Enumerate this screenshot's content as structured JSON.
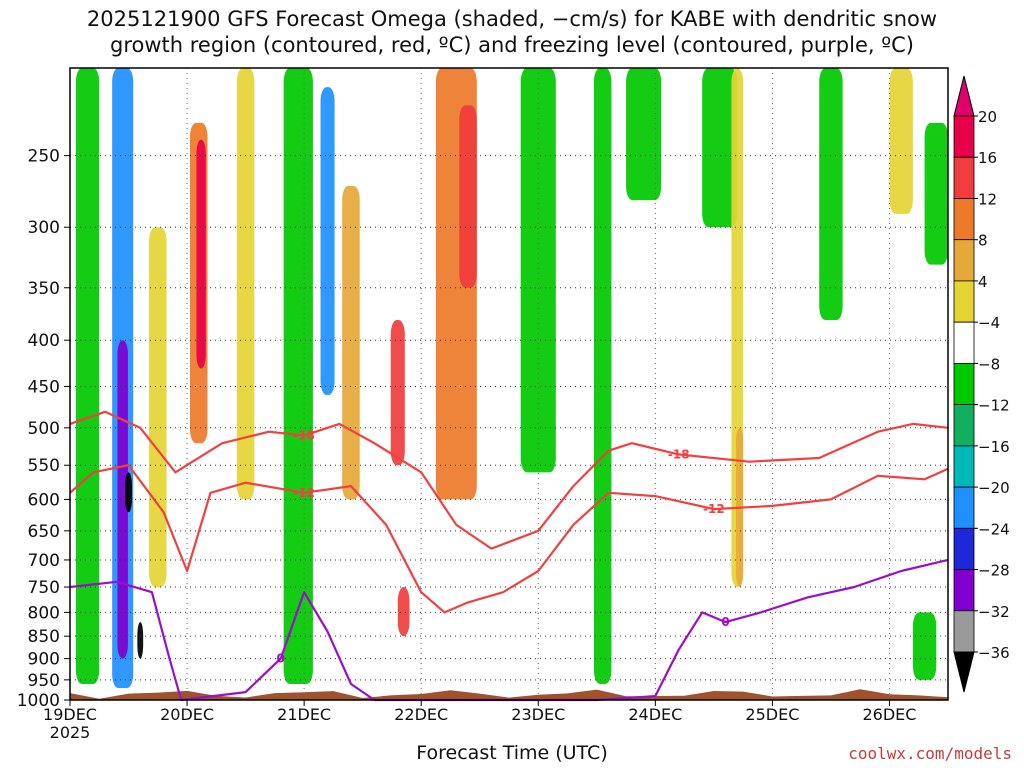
{
  "title_line1": "2025121900 GFS Forecast Omega (shaded, −cm/s) for KABE with dendritic snow",
  "title_line2": "growth region (contoured, red, ºC) and freezing level (contoured, purple, ºC)",
  "xlabel": "Forecast Time (UTC)",
  "credit": "coolwx.com/models",
  "chart_data": {
    "type": "heatmap",
    "y_axis": {
      "scale": "log-pressure",
      "range": [
        1000,
        200
      ],
      "ticks": [
        250,
        300,
        350,
        400,
        450,
        500,
        550,
        600,
        650,
        700,
        750,
        800,
        850,
        900,
        950,
        1000
      ]
    },
    "x_axis": {
      "ticks": [
        "19DEC",
        "20DEC",
        "21DEC",
        "22DEC",
        "23DEC",
        "24DEC",
        "25DEC",
        "26DEC"
      ],
      "year_label": "2025"
    },
    "colorbar": {
      "labels": [
        "20",
        "16",
        "12",
        "8",
        "4",
        "−4",
        "−8",
        "−12",
        "−16",
        "−20",
        "−24",
        "−28",
        "−32",
        "−36"
      ],
      "colors": [
        "#e8004a",
        "#f03c3c",
        "#ec7a28",
        "#e6a838",
        "#e6d434",
        "#ffffff",
        "#00c800",
        "#10b060",
        "#00b8b8",
        "#1e90ff",
        "#1e28d8",
        "#8000d0",
        "#9a9a9a",
        "#000000"
      ],
      "top_color": "#e0006a",
      "bottom_color": "#000000"
    },
    "contours": [
      {
        "label": "-12",
        "color": "#f04040"
      },
      {
        "label": "-18",
        "color": "#f04040"
      },
      {
        "label": "0",
        "color": "#9a10c8"
      }
    ],
    "shading_bands": [
      {
        "x": 19.15,
        "w": 0.2,
        "p1": 200,
        "p2": 960,
        "color": "#00c800"
      },
      {
        "x": 19.45,
        "w": 0.18,
        "p1": 200,
        "p2": 970,
        "color": "#1e90ff"
      },
      {
        "x": 19.45,
        "w": 0.09,
        "p1": 400,
        "p2": 900,
        "color": "#8000d0"
      },
      {
        "x": 19.5,
        "w": 0.06,
        "p1": 560,
        "p2": 620,
        "color": "#000000"
      },
      {
        "x": 19.6,
        "w": 0.05,
        "p1": 820,
        "p2": 900,
        "color": "#000000"
      },
      {
        "x": 19.75,
        "w": 0.15,
        "p1": 300,
        "p2": 750,
        "color": "#e6d434"
      },
      {
        "x": 20.1,
        "w": 0.15,
        "p1": 230,
        "p2": 520,
        "color": "#ec7a28"
      },
      {
        "x": 20.12,
        "w": 0.08,
        "p1": 240,
        "p2": 430,
        "color": "#e8004a"
      },
      {
        "x": 20.5,
        "w": 0.15,
        "p1": 200,
        "p2": 600,
        "color": "#e6d434"
      },
      {
        "x": 20.95,
        "w": 0.25,
        "p1": 200,
        "p2": 960,
        "color": "#00c800"
      },
      {
        "x": 21.2,
        "w": 0.12,
        "p1": 210,
        "p2": 460,
        "color": "#1e90ff"
      },
      {
        "x": 21.4,
        "w": 0.15,
        "p1": 270,
        "p2": 600,
        "color": "#e6a838"
      },
      {
        "x": 21.8,
        "w": 0.12,
        "p1": 380,
        "p2": 550,
        "color": "#f03c3c"
      },
      {
        "x": 21.85,
        "w": 0.1,
        "p1": 750,
        "p2": 850,
        "color": "#f03c3c"
      },
      {
        "x": 22.3,
        "w": 0.35,
        "p1": 200,
        "p2": 600,
        "color": "#ec7a28"
      },
      {
        "x": 22.4,
        "w": 0.15,
        "p1": 220,
        "p2": 350,
        "color": "#f03c3c"
      },
      {
        "x": 23.0,
        "w": 0.3,
        "p1": 200,
        "p2": 560,
        "color": "#00c800"
      },
      {
        "x": 23.55,
        "w": 0.15,
        "p1": 200,
        "p2": 960,
        "color": "#00c800"
      },
      {
        "x": 23.9,
        "w": 0.3,
        "p1": 200,
        "p2": 280,
        "color": "#00c800"
      },
      {
        "x": 24.55,
        "w": 0.3,
        "p1": 200,
        "p2": 300,
        "color": "#00c800"
      },
      {
        "x": 24.7,
        "w": 0.1,
        "p1": 200,
        "p2": 750,
        "color": "#e6d434"
      },
      {
        "x": 24.72,
        "w": 0.06,
        "p1": 500,
        "p2": 750,
        "color": "#e6a838"
      },
      {
        "x": 25.5,
        "w": 0.2,
        "p1": 200,
        "p2": 380,
        "color": "#00c800"
      },
      {
        "x": 26.1,
        "w": 0.2,
        "p1": 200,
        "p2": 290,
        "color": "#e6d434"
      },
      {
        "x": 26.4,
        "w": 0.2,
        "p1": 230,
        "p2": 330,
        "color": "#00c800"
      },
      {
        "x": 26.3,
        "w": 0.2,
        "p1": 800,
        "p2": 950,
        "color": "#00c800"
      }
    ],
    "contour_lines": {
      "dgz_top_-18": [
        [
          19.0,
          495
        ],
        [
          19.3,
          480
        ],
        [
          19.6,
          500
        ],
        [
          19.9,
          560
        ],
        [
          20.3,
          520
        ],
        [
          20.7,
          505
        ],
        [
          21.0,
          510
        ],
        [
          21.3,
          495
        ],
        [
          21.6,
          520
        ],
        [
          22.0,
          560
        ],
        [
          22.3,
          640
        ],
        [
          22.6,
          680
        ],
        [
          23.0,
          650
        ],
        [
          23.3,
          580
        ],
        [
          23.6,
          530
        ],
        [
          23.8,
          520
        ],
        [
          24.2,
          535
        ],
        [
          24.8,
          545
        ],
        [
          25.4,
          540
        ],
        [
          25.9,
          505
        ],
        [
          26.2,
          495
        ],
        [
          26.5,
          500
        ]
      ],
      "dgz_bottom_-12": [
        [
          19.0,
          590
        ],
        [
          19.2,
          560
        ],
        [
          19.5,
          550
        ],
        [
          19.8,
          620
        ],
        [
          20.0,
          720
        ],
        [
          20.2,
          590
        ],
        [
          20.5,
          575
        ],
        [
          21.0,
          590
        ],
        [
          21.4,
          580
        ],
        [
          21.7,
          640
        ],
        [
          22.0,
          760
        ],
        [
          22.2,
          800
        ],
        [
          22.4,
          780
        ],
        [
          22.7,
          760
        ],
        [
          23.0,
          720
        ],
        [
          23.3,
          640
        ],
        [
          23.6,
          590
        ],
        [
          24.0,
          595
        ],
        [
          24.5,
          615
        ],
        [
          25.0,
          610
        ],
        [
          25.5,
          600
        ],
        [
          25.9,
          565
        ],
        [
          26.3,
          570
        ],
        [
          26.5,
          555
        ]
      ],
      "freezing_0": [
        [
          19.0,
          750
        ],
        [
          19.4,
          740
        ],
        [
          19.7,
          760
        ],
        [
          19.85,
          900
        ],
        [
          19.95,
          1000
        ],
        [
          20.5,
          980
        ],
        [
          20.8,
          900
        ],
        [
          21.0,
          760
        ],
        [
          21.2,
          840
        ],
        [
          21.4,
          960
        ],
        [
          21.6,
          1000
        ],
        [
          23.5,
          1000
        ],
        [
          24.0,
          990
        ],
        [
          24.2,
          880
        ],
        [
          24.4,
          800
        ],
        [
          24.6,
          820
        ],
        [
          24.9,
          800
        ],
        [
          25.3,
          770
        ],
        [
          25.7,
          750
        ],
        [
          26.1,
          720
        ],
        [
          26.5,
          700
        ]
      ]
    }
  }
}
